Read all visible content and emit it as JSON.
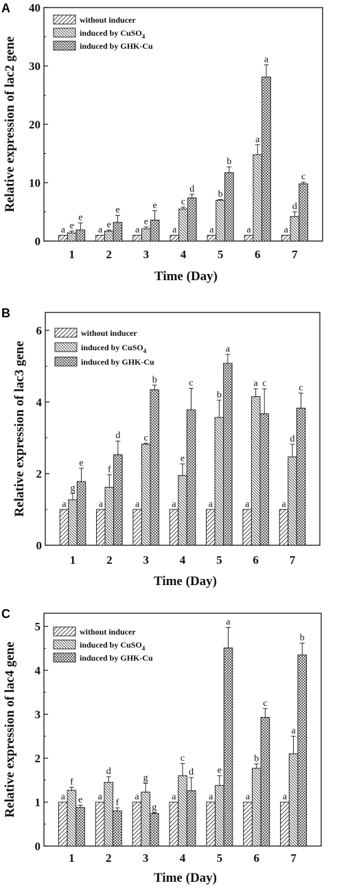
{
  "chart_data": [
    {
      "panel": "A",
      "type": "bar",
      "categories": [
        "1",
        "2",
        "3",
        "4",
        "5",
        "6",
        "7"
      ],
      "xlabel": "Time (Day)",
      "ylabel": "Relative expression of lac2 gene",
      "ylim": [
        0,
        40
      ],
      "yticks": [
        "0",
        "10",
        "20",
        "30",
        "40"
      ],
      "legend_position": "top-left",
      "series": [
        {
          "name": "without inducer",
          "pattern": "diag-right",
          "values": [
            1,
            1,
            1,
            1,
            1,
            1,
            1
          ],
          "errors": [
            0,
            0,
            0,
            0,
            0,
            0,
            0
          ],
          "labels": [
            "a",
            "a",
            "a",
            "a",
            "a",
            "a",
            "a"
          ]
        },
        {
          "name": "induced by CuSO4",
          "pattern": "diag-left",
          "values": [
            1.4,
            1.7,
            2.1,
            5.5,
            7.0,
            14.8,
            4.2
          ],
          "errors": [
            0.3,
            0.2,
            0.3,
            0.3,
            0.1,
            1.7,
            0.8
          ],
          "labels": [
            "e",
            "e",
            "e",
            "c",
            "b",
            "a",
            "d"
          ]
        },
        {
          "name": "induced by GHK-Cu",
          "pattern": "cross",
          "values": [
            1.9,
            3.2,
            3.6,
            7.4,
            11.7,
            28.1,
            9.8
          ],
          "errors": [
            1.2,
            1.2,
            1.6,
            0.6,
            1.0,
            2.1,
            0.3
          ],
          "labels": [
            "e",
            "e",
            "e",
            "d",
            "b",
            "a",
            "c"
          ]
        }
      ]
    },
    {
      "panel": "B",
      "type": "bar",
      "categories": [
        "1",
        "2",
        "3",
        "4",
        "5",
        "6",
        "7"
      ],
      "xlabel": "Time (Day)",
      "ylabel": "Relative expression of lac3 gene",
      "ylim": [
        0,
        6.5
      ],
      "yticks": [
        "0",
        "2",
        "4",
        "6"
      ],
      "legend_position": "top-left",
      "series": [
        {
          "name": "without inducer",
          "pattern": "diag-right",
          "values": [
            1,
            1,
            1,
            1,
            1,
            1,
            1
          ],
          "errors": [
            0,
            0,
            0,
            0,
            0,
            0,
            0
          ],
          "labels": [
            "a",
            "a",
            "a",
            "a",
            "a",
            "a",
            "a"
          ]
        },
        {
          "name": "induced by CuSO4",
          "pattern": "diag-left",
          "values": [
            1.27,
            1.62,
            2.82,
            1.95,
            3.57,
            4.15,
            2.47
          ],
          "errors": [
            0.18,
            0.35,
            0.03,
            0.32,
            0.48,
            0.22,
            0.35
          ],
          "labels": [
            "g",
            "f",
            "c",
            "e",
            "b",
            "a",
            "d"
          ]
        },
        {
          "name": "induced by GHK-Cu",
          "pattern": "cross",
          "values": [
            1.78,
            2.53,
            4.34,
            3.78,
            5.08,
            3.67,
            3.83
          ],
          "errors": [
            0.37,
            0.38,
            0.13,
            0.6,
            0.25,
            0.7,
            0.42
          ],
          "labels": [
            "e",
            "d",
            "b",
            "c",
            "a",
            "c",
            "c"
          ]
        }
      ]
    },
    {
      "panel": "C",
      "type": "bar",
      "categories": [
        "1",
        "2",
        "3",
        "4",
        "5",
        "6",
        "7"
      ],
      "xlabel": "Time (Day)",
      "ylabel": "Relative expression of lac4 gene",
      "ylim": [
        0,
        5.3
      ],
      "yticks": [
        "0",
        "1",
        "2",
        "3",
        "4",
        "5"
      ],
      "legend_position": "top-left",
      "series": [
        {
          "name": "without inducer",
          "pattern": "diag-right",
          "values": [
            1,
            1,
            1,
            1,
            1,
            1,
            1
          ],
          "errors": [
            0,
            0,
            0,
            0,
            0,
            0,
            0
          ],
          "labels": [
            "a",
            "a",
            "a",
            "a",
            "a",
            "a",
            "a"
          ]
        },
        {
          "name": "induced by CuSO4",
          "pattern": "diag-left",
          "values": [
            1.27,
            1.45,
            1.23,
            1.6,
            1.38,
            1.77,
            2.1
          ],
          "errors": [
            0.07,
            0.13,
            0.2,
            0.28,
            0.22,
            0.1,
            0.4
          ],
          "labels": [
            "f",
            "d",
            "g",
            "c",
            "e",
            "b",
            "a"
          ]
        },
        {
          "name": "induced by GHK-Cu",
          "pattern": "cross",
          "values": [
            0.88,
            0.8,
            0.74,
            1.26,
            4.51,
            2.93,
            4.35
          ],
          "errors": [
            0.05,
            0.07,
            0.02,
            0.3,
            0.47,
            0.2,
            0.27
          ],
          "labels": [
            "e",
            "f",
            "g",
            "d",
            "a",
            "c",
            "b"
          ]
        }
      ]
    }
  ]
}
